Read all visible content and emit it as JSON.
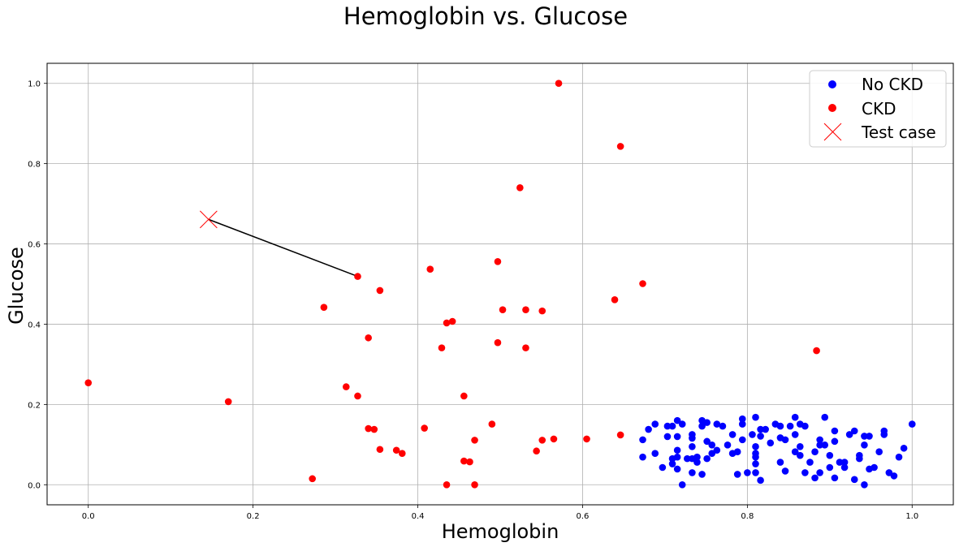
{
  "chart_data": {
    "type": "scatter",
    "title": "Hemoglobin vs. Glucose",
    "xlabel": "Hemoglobin",
    "ylabel": "Glucose",
    "xlim": [
      -0.05,
      1.05
    ],
    "ylim": [
      -0.05,
      1.05
    ],
    "xticks": [
      0.0,
      0.2,
      0.4,
      0.6,
      0.8,
      1.0
    ],
    "yticks": [
      0.0,
      0.2,
      0.4,
      0.6,
      0.8,
      1.0
    ],
    "xtick_labels": [
      "0.0",
      "0.2",
      "0.4",
      "0.6",
      "0.8",
      "1.0"
    ],
    "ytick_labels": [
      "0.0",
      "0.2",
      "0.4",
      "0.6",
      "0.8",
      "1.0"
    ],
    "grid": true,
    "legend_position": "top-right",
    "series": [
      {
        "name": "No CKD",
        "color": "#0000ff",
        "marker": "circle",
        "points": [
          [
            0.673,
            0.112
          ],
          [
            0.673,
            0.069
          ],
          [
            0.68,
            0.138
          ],
          [
            0.688,
            0.151
          ],
          [
            0.688,
            0.078
          ],
          [
            0.697,
            0.043
          ],
          [
            0.703,
            0.146
          ],
          [
            0.703,
            0.12
          ],
          [
            0.709,
            0.146
          ],
          [
            0.709,
            0.052
          ],
          [
            0.709,
            0.065
          ],
          [
            0.715,
            0.16
          ],
          [
            0.715,
            0.12
          ],
          [
            0.715,
            0.086
          ],
          [
            0.715,
            0.069
          ],
          [
            0.715,
            0.039
          ],
          [
            0.721,
            0.151
          ],
          [
            0.721,
            0.0
          ],
          [
            0.727,
            0.065
          ],
          [
            0.733,
            0.125
          ],
          [
            0.733,
            0.116
          ],
          [
            0.733,
            0.095
          ],
          [
            0.733,
            0.065
          ],
          [
            0.733,
            0.03
          ],
          [
            0.739,
            0.069
          ],
          [
            0.739,
            0.056
          ],
          [
            0.745,
            0.16
          ],
          [
            0.745,
            0.146
          ],
          [
            0.745,
            0.026
          ],
          [
            0.751,
            0.155
          ],
          [
            0.751,
            0.108
          ],
          [
            0.751,
            0.065
          ],
          [
            0.757,
            0.099
          ],
          [
            0.757,
            0.078
          ],
          [
            0.763,
            0.151
          ],
          [
            0.763,
            0.086
          ],
          [
            0.77,
            0.146
          ],
          [
            0.776,
            0.099
          ],
          [
            0.782,
            0.125
          ],
          [
            0.782,
            0.078
          ],
          [
            0.788,
            0.082
          ],
          [
            0.788,
            0.026
          ],
          [
            0.794,
            0.164
          ],
          [
            0.794,
            0.151
          ],
          [
            0.794,
            0.112
          ],
          [
            0.8,
            0.03
          ],
          [
            0.806,
            0.125
          ],
          [
            0.81,
            0.168
          ],
          [
            0.81,
            0.095
          ],
          [
            0.81,
            0.078
          ],
          [
            0.81,
            0.069
          ],
          [
            0.81,
            0.052
          ],
          [
            0.81,
            0.03
          ],
          [
            0.816,
            0.138
          ],
          [
            0.816,
            0.121
          ],
          [
            0.816,
            0.011
          ],
          [
            0.822,
            0.138
          ],
          [
            0.828,
            0.104
          ],
          [
            0.834,
            0.151
          ],
          [
            0.84,
            0.146
          ],
          [
            0.84,
            0.117
          ],
          [
            0.84,
            0.056
          ],
          [
            0.846,
            0.112
          ],
          [
            0.846,
            0.034
          ],
          [
            0.852,
            0.146
          ],
          [
            0.858,
            0.168
          ],
          [
            0.858,
            0.125
          ],
          [
            0.858,
            0.082
          ],
          [
            0.864,
            0.095
          ],
          [
            0.864,
            0.073
          ],
          [
            0.864,
            0.151
          ],
          [
            0.87,
            0.146
          ],
          [
            0.87,
            0.03
          ],
          [
            0.876,
            0.056
          ],
          [
            0.882,
            0.082
          ],
          [
            0.882,
            0.017
          ],
          [
            0.888,
            0.112
          ],
          [
            0.888,
            0.099
          ],
          [
            0.888,
            0.03
          ],
          [
            0.894,
            0.168
          ],
          [
            0.894,
            0.099
          ],
          [
            0.9,
            0.073
          ],
          [
            0.9,
            0.043
          ],
          [
            0.906,
            0.134
          ],
          [
            0.906,
            0.108
          ],
          [
            0.906,
            0.017
          ],
          [
            0.912,
            0.056
          ],
          [
            0.918,
            0.056
          ],
          [
            0.918,
            0.043
          ],
          [
            0.924,
            0.125
          ],
          [
            0.93,
            0.134
          ],
          [
            0.93,
            0.013
          ],
          [
            0.936,
            0.073
          ],
          [
            0.936,
            0.065
          ],
          [
            0.942,
            0.121
          ],
          [
            0.942,
            0.099
          ],
          [
            0.942,
            0.0
          ],
          [
            0.948,
            0.121
          ],
          [
            0.948,
            0.039
          ],
          [
            0.954,
            0.043
          ],
          [
            0.96,
            0.082
          ],
          [
            0.966,
            0.134
          ],
          [
            0.966,
            0.125
          ],
          [
            0.972,
            0.03
          ],
          [
            0.978,
            0.022
          ],
          [
            0.984,
            0.069
          ],
          [
            0.99,
            0.091
          ],
          [
            1.0,
            0.151
          ]
        ]
      },
      {
        "name": "CKD",
        "color": "#ff0000",
        "marker": "circle",
        "points": [
          [
            0.0,
            0.254
          ],
          [
            0.17,
            0.207
          ],
          [
            0.272,
            0.015
          ],
          [
            0.286,
            0.442
          ],
          [
            0.313,
            0.244
          ],
          [
            0.327,
            0.519
          ],
          [
            0.327,
            0.221
          ],
          [
            0.34,
            0.366
          ],
          [
            0.34,
            0.14
          ],
          [
            0.347,
            0.138
          ],
          [
            0.354,
            0.484
          ],
          [
            0.354,
            0.088
          ],
          [
            0.374,
            0.086
          ],
          [
            0.381,
            0.078
          ],
          [
            0.408,
            0.141
          ],
          [
            0.415,
            0.537
          ],
          [
            0.429,
            0.341
          ],
          [
            0.435,
            0.403
          ],
          [
            0.435,
            0.0
          ],
          [
            0.442,
            0.407
          ],
          [
            0.456,
            0.221
          ],
          [
            0.456,
            0.059
          ],
          [
            0.463,
            0.057
          ],
          [
            0.469,
            0.111
          ],
          [
            0.469,
            0.0
          ],
          [
            0.49,
            0.151
          ],
          [
            0.497,
            0.556
          ],
          [
            0.497,
            0.354
          ],
          [
            0.503,
            0.436
          ],
          [
            0.524,
            0.74
          ],
          [
            0.531,
            0.436
          ],
          [
            0.531,
            0.341
          ],
          [
            0.544,
            0.084
          ],
          [
            0.551,
            0.433
          ],
          [
            0.551,
            0.111
          ],
          [
            0.565,
            0.114
          ],
          [
            0.571,
            1.0
          ],
          [
            0.605,
            0.114
          ],
          [
            0.639,
            0.461
          ],
          [
            0.646,
            0.843
          ],
          [
            0.646,
            0.124
          ],
          [
            0.673,
            0.501
          ],
          [
            0.884,
            0.334
          ]
        ]
      }
    ],
    "test_case": {
      "name": "Test case",
      "color": "#ff0000",
      "marker": "x",
      "point": [
        0.146,
        0.661
      ],
      "nearest_neighbor": [
        0.327,
        0.519
      ],
      "line_color": "#000000"
    }
  }
}
